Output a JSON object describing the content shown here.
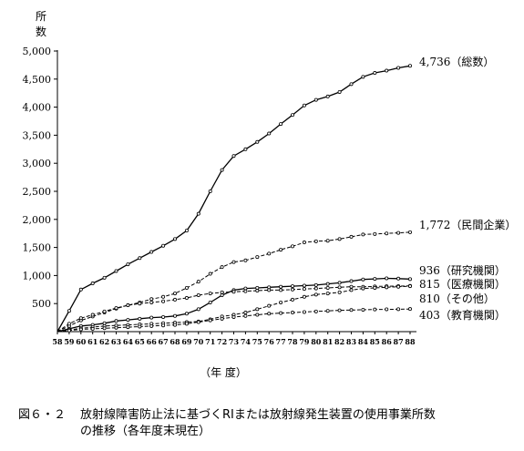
{
  "chart_data": {
    "type": "line",
    "ylabel": "所数",
    "xlabel": "（年 度）",
    "ylim": [
      0,
      5000
    ],
    "yticks": [
      "5,000",
      "4,500",
      "4,000",
      "3,500",
      "3,000",
      "2,500",
      "2,000",
      "1,500",
      "1,000",
      "500"
    ],
    "yticks_values": [
      5000,
      4500,
      4000,
      3500,
      3000,
      2500,
      2000,
      1500,
      1000,
      500
    ],
    "x": [
      "58",
      "59",
      "60",
      "61",
      "62",
      "63",
      "64",
      "65",
      "66",
      "67",
      "68",
      "69",
      "70",
      "71",
      "72",
      "73",
      "74",
      "75",
      "76",
      "77",
      "78",
      "79",
      "80",
      "81",
      "82",
      "83",
      "84",
      "85",
      "86",
      "87",
      "88"
    ],
    "grid": false,
    "series": [
      {
        "name": "総数",
        "end_label": "4,736（総数）",
        "style": "solid",
        "values": [
          0,
          370,
          750,
          860,
          960,
          1080,
          1200,
          1310,
          1420,
          1530,
          1650,
          1800,
          2100,
          2500,
          2880,
          3130,
          3250,
          3380,
          3530,
          3700,
          3860,
          4030,
          4130,
          4190,
          4270,
          4410,
          4540,
          4610,
          4650,
          4700,
          4736
        ]
      },
      {
        "name": "民間企業",
        "end_label": "1,772（民間企業）",
        "style": "dashed",
        "values": [
          0,
          100,
          200,
          270,
          340,
          410,
          470,
          520,
          580,
          620,
          680,
          780,
          890,
          1030,
          1150,
          1240,
          1270,
          1330,
          1390,
          1460,
          1520,
          1590,
          1610,
          1620,
          1650,
          1690,
          1730,
          1740,
          1750,
          1760,
          1772
        ]
      },
      {
        "name": "研究機関",
        "end_label": "936（研究機関）",
        "style": "solid",
        "values": [
          0,
          50,
          100,
          120,
          150,
          190,
          210,
          230,
          250,
          260,
          280,
          320,
          400,
          520,
          650,
          740,
          770,
          780,
          790,
          800,
          810,
          820,
          830,
          850,
          870,
          900,
          930,
          940,
          950,
          945,
          936
        ]
      },
      {
        "name": "医療機関",
        "end_label": "815（医療機関）",
        "style": "dashed",
        "values": [
          0,
          140,
          240,
          300,
          360,
          420,
          470,
          500,
          520,
          540,
          570,
          600,
          650,
          680,
          700,
          710,
          720,
          730,
          740,
          740,
          750,
          760,
          770,
          780,
          790,
          800,
          800,
          805,
          810,
          812,
          815
        ]
      },
      {
        "name": "その他",
        "end_label": "810（その他）",
        "style": "dashed",
        "values": [
          0,
          30,
          60,
          80,
          100,
          110,
          120,
          130,
          140,
          150,
          160,
          170,
          180,
          220,
          270,
          300,
          340,
          400,
          460,
          520,
          570,
          620,
          660,
          680,
          700,
          740,
          770,
          780,
          790,
          800,
          810
        ]
      },
      {
        "name": "教育機関",
        "end_label": "403（教育機関）",
        "style": "dashed",
        "values": [
          0,
          20,
          40,
          50,
          60,
          70,
          80,
          90,
          100,
          110,
          120,
          140,
          170,
          200,
          230,
          260,
          280,
          300,
          320,
          330,
          340,
          350,
          360,
          370,
          380,
          385,
          390,
          395,
          398,
          400,
          403
        ]
      }
    ]
  },
  "caption": {
    "number": "図６・２",
    "line1": "放射線障害防止法に基づくRIまたは放射線発生装置の使用事業所数",
    "line2": "の推移（各年度末現在）"
  }
}
